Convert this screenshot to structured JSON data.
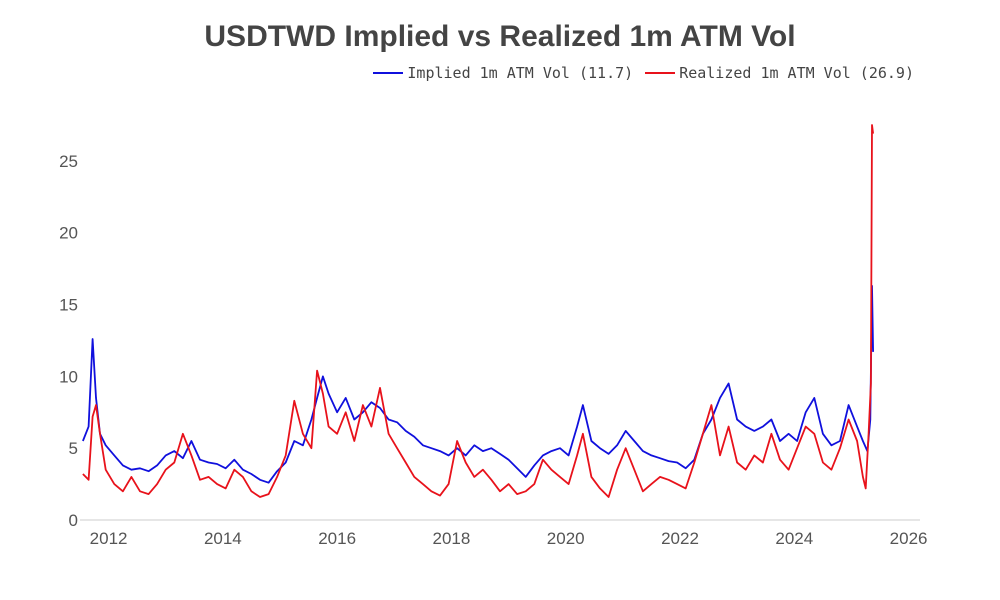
{
  "chart_data": {
    "type": "line",
    "title": "USDTWD Implied vs Realized 1m ATM Vol",
    "xlabel": "",
    "ylabel": "",
    "xlim": [
      2011.5,
      2026.2
    ],
    "ylim": [
      0,
      27.5
    ],
    "grid": false,
    "legend_position": "top-right",
    "x_ticks": [
      2012,
      2014,
      2016,
      2018,
      2020,
      2022,
      2024,
      2026
    ],
    "x_tick_labels": [
      "2012",
      "2014",
      "2016",
      "2018",
      "2020",
      "2022",
      "2024",
      "2026"
    ],
    "y_ticks": [
      0,
      5,
      10,
      15,
      20,
      25
    ],
    "y_tick_labels": [
      "0",
      "5",
      "10",
      "15",
      "20",
      "25"
    ],
    "series": [
      {
        "name": "Implied 1m ATM Vol (11.7)",
        "color": "#1010dd",
        "x": [
          2011.55,
          2011.65,
          2011.72,
          2011.78,
          2011.85,
          2011.95,
          2012.1,
          2012.25,
          2012.4,
          2012.55,
          2012.7,
          2012.85,
          2013.0,
          2013.15,
          2013.3,
          2013.45,
          2013.6,
          2013.75,
          2013.9,
          2014.05,
          2014.2,
          2014.35,
          2014.5,
          2014.65,
          2014.8,
          2014.95,
          2015.1,
          2015.25,
          2015.4,
          2015.55,
          2015.65,
          2015.75,
          2015.85,
          2016.0,
          2016.15,
          2016.3,
          2016.45,
          2016.6,
          2016.75,
          2016.9,
          2017.05,
          2017.2,
          2017.35,
          2017.5,
          2017.65,
          2017.8,
          2017.95,
          2018.1,
          2018.25,
          2018.4,
          2018.55,
          2018.7,
          2018.85,
          2019.0,
          2019.15,
          2019.3,
          2019.45,
          2019.6,
          2019.75,
          2019.9,
          2020.05,
          2020.2,
          2020.3,
          2020.45,
          2020.6,
          2020.75,
          2020.9,
          2021.05,
          2021.2,
          2021.35,
          2021.5,
          2021.65,
          2021.8,
          2021.95,
          2022.1,
          2022.25,
          2022.4,
          2022.55,
          2022.7,
          2022.85,
          2023.0,
          2023.15,
          2023.3,
          2023.45,
          2023.6,
          2023.75,
          2023.9,
          2024.05,
          2024.2,
          2024.35,
          2024.5,
          2024.65,
          2024.8,
          2024.95,
          2025.1,
          2025.2,
          2025.28,
          2025.33,
          2025.36,
          2025.38
        ],
        "values": [
          5.5,
          6.5,
          12.6,
          8.5,
          6.0,
          5.2,
          4.5,
          3.8,
          3.5,
          3.6,
          3.4,
          3.8,
          4.5,
          4.8,
          4.3,
          5.5,
          4.2,
          4.0,
          3.9,
          3.6,
          4.2,
          3.5,
          3.2,
          2.8,
          2.6,
          3.4,
          4.0,
          5.5,
          5.2,
          7.0,
          8.5,
          10.0,
          8.8,
          7.5,
          8.5,
          7.0,
          7.5,
          8.2,
          7.8,
          7.0,
          6.8,
          6.2,
          5.8,
          5.2,
          5.0,
          4.8,
          4.5,
          5.0,
          4.5,
          5.2,
          4.8,
          5.0,
          4.6,
          4.2,
          3.6,
          3.0,
          3.8,
          4.5,
          4.8,
          5.0,
          4.5,
          6.5,
          8.0,
          5.5,
          5.0,
          4.6,
          5.2,
          6.2,
          5.5,
          4.8,
          4.5,
          4.3,
          4.1,
          4.0,
          3.6,
          4.2,
          6.0,
          7.0,
          8.5,
          9.5,
          7.0,
          6.5,
          6.2,
          6.5,
          7.0,
          5.5,
          6.0,
          5.5,
          7.5,
          8.5,
          6.0,
          5.2,
          5.5,
          8.0,
          6.5,
          5.5,
          4.8,
          7.0,
          16.3,
          11.7
        ]
      },
      {
        "name": "Realized 1m ATM Vol (26.9)",
        "color": "#e8121b",
        "x": [
          2011.55,
          2011.65,
          2011.72,
          2011.78,
          2011.85,
          2011.95,
          2012.1,
          2012.25,
          2012.4,
          2012.55,
          2012.7,
          2012.85,
          2013.0,
          2013.15,
          2013.3,
          2013.45,
          2013.6,
          2013.75,
          2013.9,
          2014.05,
          2014.2,
          2014.35,
          2014.5,
          2014.65,
          2014.8,
          2014.95,
          2015.1,
          2015.25,
          2015.4,
          2015.55,
          2015.65,
          2015.75,
          2015.85,
          2016.0,
          2016.15,
          2016.3,
          2016.45,
          2016.6,
          2016.75,
          2016.9,
          2017.05,
          2017.2,
          2017.35,
          2017.5,
          2017.65,
          2017.8,
          2017.95,
          2018.1,
          2018.25,
          2018.4,
          2018.55,
          2018.7,
          2018.85,
          2019.0,
          2019.15,
          2019.3,
          2019.45,
          2019.6,
          2019.75,
          2019.9,
          2020.05,
          2020.2,
          2020.3,
          2020.45,
          2020.6,
          2020.75,
          2020.9,
          2021.05,
          2021.2,
          2021.35,
          2021.5,
          2021.65,
          2021.8,
          2021.95,
          2022.1,
          2022.25,
          2022.4,
          2022.55,
          2022.7,
          2022.85,
          2023.0,
          2023.15,
          2023.3,
          2023.45,
          2023.6,
          2023.75,
          2023.9,
          2024.05,
          2024.2,
          2024.35,
          2024.5,
          2024.65,
          2024.8,
          2024.95,
          2025.1,
          2025.2,
          2025.25,
          2025.3,
          2025.34,
          2025.36,
          2025.38
        ],
        "values": [
          3.2,
          2.8,
          7.2,
          8.0,
          6.0,
          3.5,
          2.5,
          2.0,
          3.0,
          2.0,
          1.8,
          2.5,
          3.5,
          4.0,
          6.0,
          4.5,
          2.8,
          3.0,
          2.5,
          2.2,
          3.5,
          3.0,
          2.0,
          1.6,
          1.8,
          3.0,
          4.5,
          8.3,
          6.0,
          5.0,
          10.4,
          8.8,
          6.5,
          6.0,
          7.5,
          5.5,
          8.0,
          6.5,
          9.2,
          6.0,
          5.0,
          4.0,
          3.0,
          2.5,
          2.0,
          1.7,
          2.5,
          5.5,
          4.0,
          3.0,
          3.5,
          2.8,
          2.0,
          2.5,
          1.8,
          2.0,
          2.5,
          4.2,
          3.5,
          3.0,
          2.5,
          4.5,
          6.0,
          3.0,
          2.2,
          1.6,
          3.5,
          5.0,
          3.5,
          2.0,
          2.5,
          3.0,
          2.8,
          2.5,
          2.2,
          4.0,
          6.0,
          8.0,
          4.5,
          6.5,
          4.0,
          3.5,
          4.5,
          4.0,
          6.0,
          4.2,
          3.5,
          5.0,
          6.5,
          6.0,
          4.0,
          3.5,
          5.0,
          7.0,
          5.5,
          3.0,
          2.2,
          6.0,
          9.5,
          27.5,
          26.9
        ]
      }
    ]
  }
}
